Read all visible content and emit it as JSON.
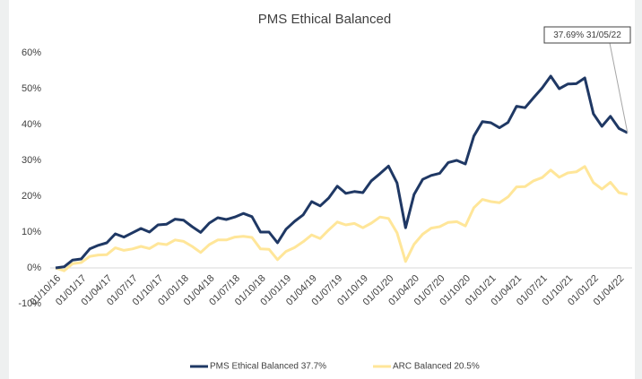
{
  "chart_data": {
    "type": "line",
    "title": "PMS Ethical Balanced",
    "annotation": "37.69% 31/05/22",
    "categories": [
      "01/10/16",
      null,
      null,
      "01/01/17",
      null,
      null,
      "01/04/17",
      null,
      null,
      "01/07/17",
      null,
      null,
      "01/10/17",
      null,
      null,
      "01/01/18",
      null,
      null,
      "01/04/18",
      null,
      null,
      "01/07/18",
      null,
      null,
      "01/10/18",
      null,
      null,
      "01/01/19",
      null,
      null,
      "01/04/19",
      null,
      null,
      "01/07/19",
      null,
      null,
      "01/10/19",
      null,
      null,
      "01/01/20",
      null,
      null,
      "01/04/20",
      null,
      null,
      "01/07/20",
      null,
      null,
      "01/10/20",
      null,
      null,
      "01/01/21",
      null,
      null,
      "01/04/21",
      null,
      null,
      "01/07/21",
      null,
      null,
      "01/10/21",
      null,
      null,
      "01/01/22",
      null,
      null,
      "01/04/22",
      null
    ],
    "series": [
      {
        "name": "PMS Ethical Balanced 37.7%",
        "color": "#1f3864",
        "values": [
          0,
          0.3,
          2.2,
          2.5,
          5.3,
          6.3,
          7,
          9.5,
          8.6,
          9.8,
          11,
          10,
          12,
          12.2,
          13.6,
          13.3,
          11.5,
          9.9,
          12.5,
          14,
          13.5,
          14.2,
          15.2,
          14.3,
          10,
          10,
          7,
          10.8,
          13,
          14.8,
          18.5,
          17.3,
          19.5,
          22.8,
          20.8,
          21.3,
          21,
          24.3,
          26.3,
          28.4,
          23.7,
          11.2,
          20.5,
          24.7,
          25.8,
          26.4,
          29.4,
          30,
          29,
          36.8,
          40.8,
          40.5,
          39.1,
          40.6,
          45.1,
          44.7,
          47.5,
          50.2,
          53.5,
          50,
          51.3,
          51.4,
          53,
          43,
          39.5,
          42.3,
          38.9,
          37.69
        ]
      },
      {
        "name": "ARC Balanced 20.5%",
        "color": "#ffe699",
        "values": [
          0,
          -0.8,
          1.2,
          1.5,
          3.2,
          3.6,
          3.7,
          5.6,
          4.9,
          5.3,
          6,
          5.4,
          6.8,
          6.5,
          7.8,
          7.4,
          6,
          4.3,
          6.5,
          7.8,
          7.8,
          8.6,
          8.8,
          8.5,
          5.3,
          5.2,
          2.3,
          4.6,
          5.7,
          7.3,
          9.2,
          8.2,
          10.6,
          12.8,
          12,
          12.4,
          11.2,
          12.5,
          14.2,
          13.8,
          9.8,
          1.8,
          6.6,
          9.4,
          11.1,
          11.5,
          12.7,
          12.9,
          11.7,
          16.8,
          19.1,
          18.5,
          18.2,
          19.8,
          22.6,
          22.7,
          24.3,
          25.2,
          27.3,
          25.3,
          26.5,
          26.8,
          28.3,
          23.8,
          22,
          23.9,
          21,
          20.5
        ]
      }
    ],
    "ylim": [
      -10,
      60
    ],
    "yticks": [
      {
        "value": -10,
        "label": "-10%"
      },
      {
        "value": 0,
        "label": "0%"
      },
      {
        "value": 10,
        "label": "10%"
      },
      {
        "value": 20,
        "label": "20%"
      },
      {
        "value": 30,
        "label": "30%"
      },
      {
        "value": 40,
        "label": "40%"
      },
      {
        "value": 50,
        "label": "50%"
      },
      {
        "value": 60,
        "label": "60%"
      }
    ],
    "legend": "bottom"
  }
}
